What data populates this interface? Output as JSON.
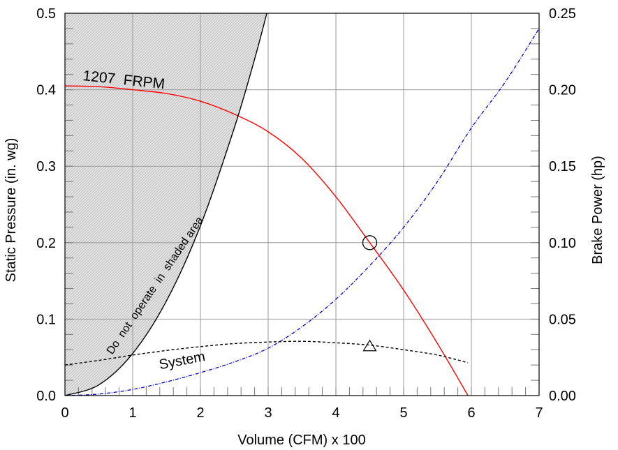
{
  "chart_data": {
    "type": "line",
    "xlabel": "Volume (CFM) x 100",
    "ylabel": "Static Pressure (in. wg)",
    "y2label": "Brake Power (hp)",
    "xlim": [
      0,
      7
    ],
    "ylim": [
      0,
      0.5
    ],
    "y2lim": [
      0,
      0.25
    ],
    "x_ticks": [
      "0",
      "1",
      "2",
      "3",
      "4",
      "5",
      "6",
      "7"
    ],
    "y_ticks": [
      "0.0",
      "0.1",
      "0.2",
      "0.3",
      "0.4",
      "0.5"
    ],
    "y2_ticks": [
      "0.00",
      "0.05",
      "0.10",
      "0.15",
      "0.20",
      "0.25"
    ],
    "grid": true,
    "colors": {
      "fan_curve": "#ff0000",
      "power_curve": "#0000cc",
      "system_curve": "#000000",
      "boundary": "#000000",
      "shade": "#d8d8d8"
    },
    "series": [
      {
        "name": "1207 FRPM",
        "axis": "left",
        "style": "solid",
        "x": [
          0,
          0.5,
          1.0,
          1.5,
          2.0,
          2.5,
          3.0,
          3.5,
          4.0,
          4.5,
          5.0,
          5.5,
          5.95
        ],
        "y": [
          0.405,
          0.404,
          0.4,
          0.395,
          0.385,
          0.368,
          0.345,
          0.31,
          0.26,
          0.2,
          0.138,
          0.068,
          0.0
        ]
      },
      {
        "axis": "right",
        "style": "dash-dot",
        "x": [
          0,
          0.5,
          1.0,
          1.5,
          2.0,
          2.5,
          3.0,
          3.5,
          4.0,
          4.5,
          5.0,
          5.5,
          6.0,
          6.5,
          7.0
        ],
        "y": [
          0.0,
          0.001,
          0.004,
          0.009,
          0.015,
          0.022,
          0.031,
          0.045,
          0.063,
          0.085,
          0.11,
          0.14,
          0.175,
          0.205,
          0.24
        ]
      },
      {
        "name": "System",
        "axis": "left",
        "style": "dashed",
        "x": [
          0,
          0.5,
          1.0,
          1.5,
          2.0,
          2.5,
          3.0,
          3.5,
          4.0,
          4.5,
          5.0,
          5.5,
          5.95
        ],
        "y": [
          0.04,
          0.046,
          0.053,
          0.059,
          0.064,
          0.068,
          0.07,
          0.071,
          0.069,
          0.066,
          0.06,
          0.053,
          0.043
        ]
      },
      {
        "name": "Do not operate in shaded area",
        "axis": "left",
        "style": "solid",
        "x": [
          0,
          0.5,
          1.0,
          1.5,
          2.0,
          2.5,
          2.8,
          2.98
        ],
        "y": [
          0.0,
          0.014,
          0.055,
          0.124,
          0.222,
          0.35,
          0.44,
          0.5
        ]
      }
    ],
    "markers": [
      {
        "shape": "circle",
        "x": 4.5,
        "y": 0.2
      },
      {
        "shape": "triangle",
        "x": 4.5,
        "y": 0.065
      }
    ],
    "annotations": {
      "fan_label": "1207  FRPM",
      "boundary_label": "Do  not  operate  in  shaded area",
      "system_label": "System"
    }
  }
}
